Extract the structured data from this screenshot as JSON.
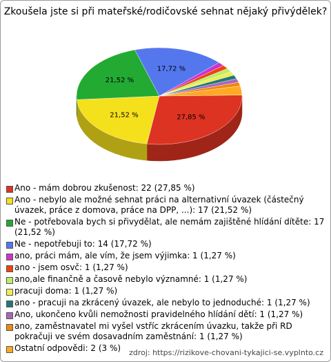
{
  "chart_data": {
    "type": "pie",
    "title": "Zkoušela jste si při mateřské/rodičovské sehnat nějaký přivýdělek?",
    "categories": [
      "Ano - mám dobrou zkušenost: 22 (27,85 %)",
      "Ano - nebylo ale možné sehnat práci na alternativní úvazek (částečný úvazek, práce z domova, práce na DPP, ...): 17 (21,52 %)",
      "Ne - potřebovala bych si přivydělat, ale nemám zajištěné hlídání dítěte: 17 (21,52 %)",
      "Ne - nepotřebuji to: 14 (17,72 %)",
      "ano, práci mám, ale vím, že jsem výjimka: 1 (1,27 %)",
      "ano - jsem osvč: 1 (1,27 %)",
      "ano,ale finančně a časově nebylo významné: 1 (1,27 %)",
      "pracuji doma: 1 (1,27 %)",
      "ano - pracuji na zkrácený úvazek, ale nebylo to jednoduché: 1 (1,27 %)",
      "Ano, ukončeno kvůli nemožnosti pravidelného hlídání dětí: 1 (1,27 %)",
      "ano, zaměstnavatel mi vyšel vstříc zkrácením úvazku, takže při RD pokračuji ve svém dosavadním zaměstnání: 1 (1,27 %)",
      "Ostatní odpovědi: 2 (3 %)"
    ],
    "values": [
      27.85,
      21.52,
      21.52,
      17.72,
      1.27,
      1.27,
      1.27,
      1.27,
      1.27,
      1.27,
      1.27,
      3
    ],
    "value_labels": [
      "27,85 %",
      "21,52 %",
      "21,52 %",
      "17,72 %",
      null,
      null,
      null,
      null,
      null,
      null,
      null,
      null
    ],
    "colors": [
      "#dd3322",
      "#f5e01c",
      "#22aa33",
      "#5577ee",
      "#cc33cc",
      "#ee4411",
      "#bbee66",
      "#eeee55",
      "#227777",
      "#aa66bb",
      "#ee8811",
      "#ffaa22"
    ],
    "source": "zdroj: https://rizikove-chovani-tykajici-se.vyplnto.cz"
  }
}
